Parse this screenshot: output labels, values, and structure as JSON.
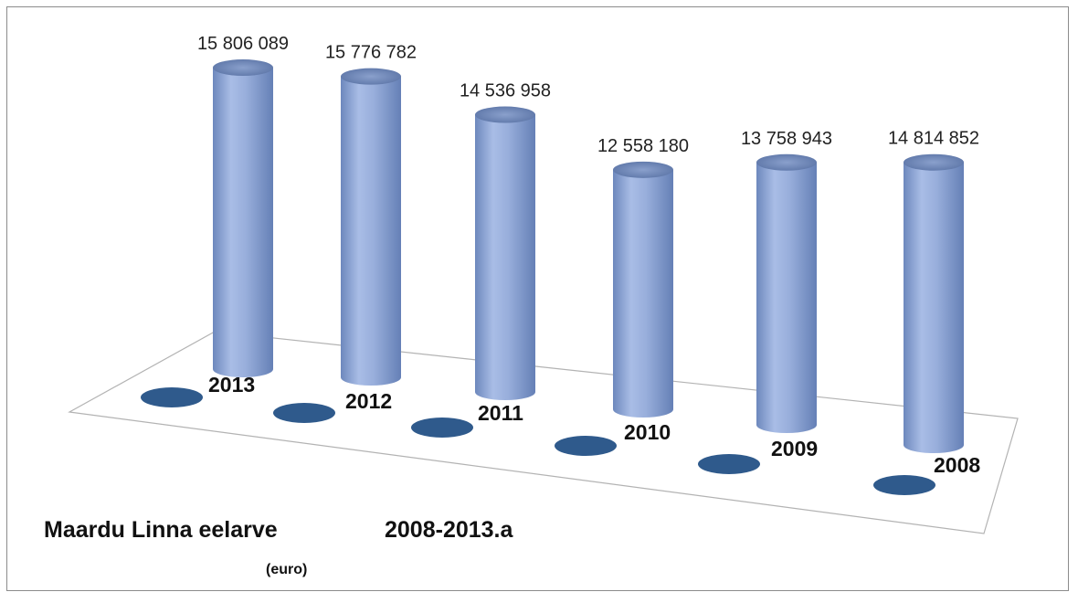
{
  "chart_data": {
    "type": "bar",
    "style": "3d-cylinder",
    "title": "Maardu Linna eelarve",
    "title_years": "2008-2013.a",
    "subtitle": "(euro)",
    "categories": [
      "2013",
      "2012",
      "2011",
      "2010",
      "2009",
      "2008"
    ],
    "values": [
      15806089,
      15776782,
      14536958,
      12558180,
      13758943,
      14814852
    ],
    "value_labels": [
      "15 806 089",
      "15 776 782",
      "14 536 958",
      "12 558 180",
      "13 758 943",
      "14 814 852"
    ],
    "grid": false,
    "legend": "none",
    "colors": {
      "cylinder": "#95acd9",
      "marker": "#2f5a8c",
      "text": "#111111"
    }
  }
}
